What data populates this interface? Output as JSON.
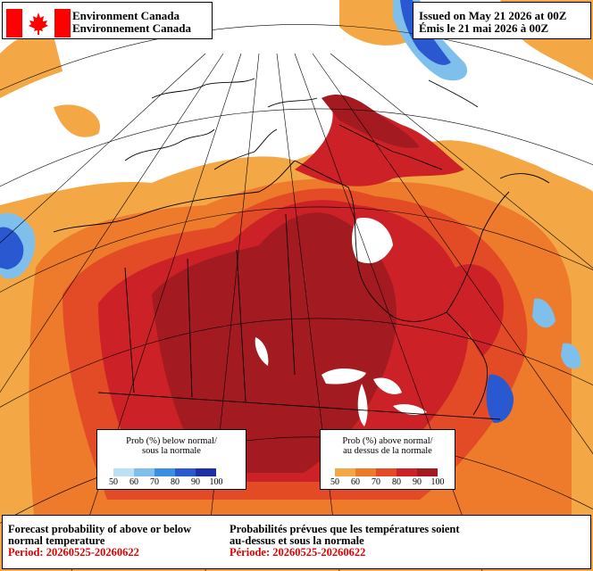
{
  "header": {
    "org_en": "Environment Canada",
    "org_fr": "Environnement Canada",
    "issued_en": "Issued on May 21 2026 at 00Z",
    "issued_fr": "Émis le 21 mai 2026 à 00Z"
  },
  "legend_below": {
    "title_en": "Prob (%) below normal/",
    "title_fr": "sous la normale",
    "ticks": [
      "50",
      "60",
      "70",
      "80",
      "90",
      "100"
    ],
    "colors": [
      "#bde0f5",
      "#7fbfec",
      "#3b8fe2",
      "#2a58d0",
      "#1e2fa6"
    ]
  },
  "legend_above": {
    "title_en": "Prob (%) above normal/",
    "title_fr": "au dessus de la normale",
    "ticks": [
      "50",
      "60",
      "70",
      "80",
      "90",
      "100"
    ],
    "colors": [
      "#f3a845",
      "#ee7a2c",
      "#e24b25",
      "#cc2127",
      "#a31b20"
    ]
  },
  "footer": {
    "title_en_1": "Forecast probability of above or below",
    "title_en_2": "normal temperature",
    "period_en": "Period: 20260525-20260622",
    "title_fr_1": "Probabilités prévues que les températures soient",
    "title_fr_2": "au-dessus et sous la normale",
    "period_fr": "Période: 20260525-20260622"
  },
  "colors": {
    "ocean": "#ffffff",
    "above_50": "#f3a845",
    "above_60": "#ee7a2c",
    "above_70": "#e24b25",
    "above_80": "#cc2127",
    "above_90": "#a31b20",
    "below_60": "#7fbfec",
    "below_80": "#2a58d0",
    "flag_red": "#ff0000"
  }
}
